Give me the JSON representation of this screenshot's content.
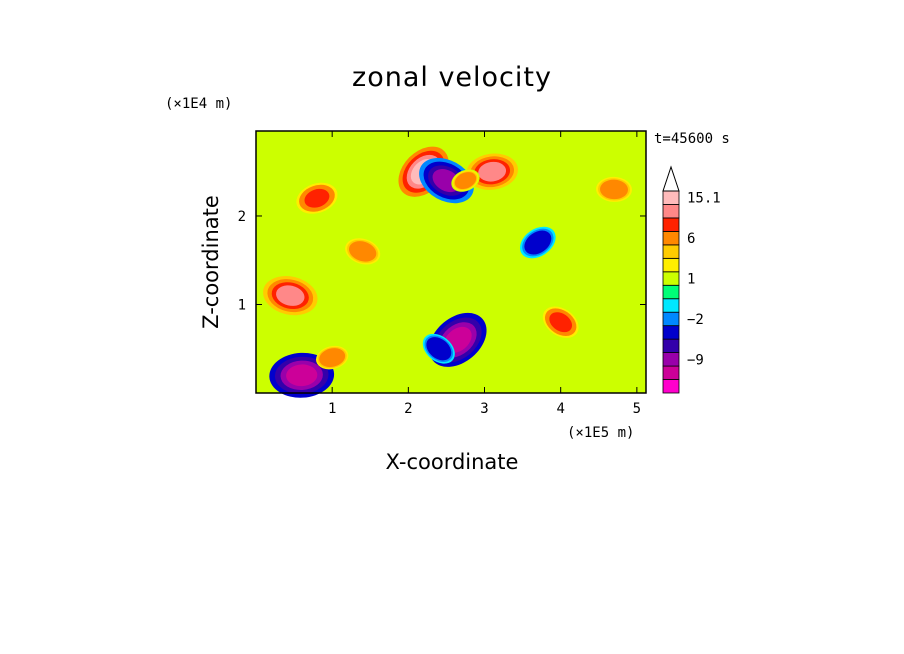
{
  "chart_data": {
    "type": "heatmap",
    "title": "zonal velocity",
    "xlabel": "X-coordinate",
    "ylabel": "Z-coordinate",
    "x_unit": "(×1E5 m)",
    "y_unit": "(×1E4 m)",
    "time_label": "t=45600 s",
    "xlim": [
      0,
      5.12
    ],
    "ylim": [
      0,
      2.96
    ],
    "x_ticks": [
      "1",
      "2",
      "3",
      "4",
      "5"
    ],
    "y_ticks": [
      "1",
      "2"
    ],
    "colorbar": {
      "levels": [
        -15,
        -12,
        -9,
        -6,
        -3,
        -2,
        -1,
        0,
        1,
        2,
        3,
        6,
        9,
        12,
        15.1
      ],
      "tick_labels": [
        "15.1",
        "6",
        "1",
        "−2",
        "−9"
      ],
      "colors": [
        "#ff00cc",
        "#cc0099",
        "#9900aa",
        "#3300aa",
        "#0000cc",
        "#0088ff",
        "#00e8ff",
        "#00ff77",
        "#ccff00",
        "#ffee00",
        "#ffcc00",
        "#ff8800",
        "#ff2200",
        "#ff8888",
        "#ffbbbb",
        "#ffffff"
      ]
    },
    "features": [
      {
        "x": 2.2,
        "z": 2.5,
        "u": 12
      },
      {
        "x": 3.1,
        "z": 2.5,
        "u": 10
      },
      {
        "x": 2.5,
        "z": 2.4,
        "u": -12
      },
      {
        "x": 2.75,
        "z": 2.4,
        "u": 3
      },
      {
        "x": 0.45,
        "z": 1.1,
        "u": 11
      },
      {
        "x": 2.65,
        "z": 0.6,
        "u": -14
      },
      {
        "x": 0.6,
        "z": 0.2,
        "u": -14
      },
      {
        "x": 4.0,
        "z": 0.8,
        "u": 6
      },
      {
        "x": 0.8,
        "z": 2.2,
        "u": 7
      },
      {
        "x": 1.4,
        "z": 1.6,
        "u": 5
      },
      {
        "x": 3.7,
        "z": 1.7,
        "u": -6
      },
      {
        "x": 4.7,
        "z": 2.3,
        "u": 5
      },
      {
        "x": 2.4,
        "z": 0.5,
        "u": -5
      },
      {
        "x": 1.0,
        "z": 0.4,
        "u": 4
      }
    ]
  }
}
